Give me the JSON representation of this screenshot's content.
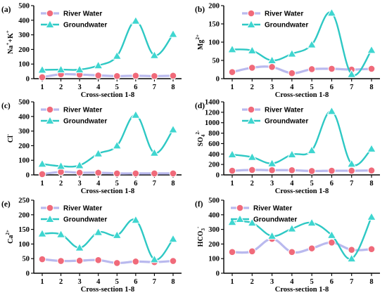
{
  "colors": {
    "river": "#f06a7a",
    "river_line": "#b9b9ee",
    "ground": "#2ec8c4",
    "ground_marker": "#3fd6d0"
  },
  "chart_data": [
    {
      "type": "line",
      "panel_label": "(a)",
      "ylabel_base": "Na",
      "ylabel_sup": "+",
      "ylabel_mid": "+K",
      "ylabel_sup2": "+",
      "xlabel": "Cross-section 1-8",
      "categories": [
        "1",
        "2",
        "3",
        "4",
        "5",
        "6",
        "7",
        "8"
      ],
      "ylim": [
        0,
        500
      ],
      "yticks": [
        "0",
        "100",
        "200",
        "300",
        "400",
        "500"
      ],
      "legend_position": "top-left",
      "series": [
        {
          "name": "River Water",
          "values": [
            10,
            30,
            28,
            22,
            18,
            20,
            18,
            20
          ]
        },
        {
          "name": "Groundwater",
          "values": [
            60,
            62,
            62,
            90,
            155,
            395,
            160,
            305
          ]
        }
      ]
    },
    {
      "type": "line",
      "panel_label": "(b)",
      "ylabel_base": "Mg",
      "ylabel_sup": "2+",
      "ylabel_mid": "",
      "ylabel_sup2": "",
      "xlabel": "Cross-section 1-8",
      "categories": [
        "1",
        "2",
        "3",
        "4",
        "5",
        "6",
        "7",
        "8"
      ],
      "ylim": [
        0,
        200
      ],
      "yticks": [
        "0",
        "50",
        "100",
        "150",
        "200"
      ],
      "legend_position": "top-center",
      "series": [
        {
          "name": "River Water",
          "values": [
            18,
            30,
            32,
            15,
            26,
            27,
            25,
            27
          ]
        },
        {
          "name": "Groundwater",
          "values": [
            80,
            77,
            50,
            68,
            93,
            180,
            12,
            78
          ]
        }
      ]
    },
    {
      "type": "line",
      "panel_label": "(c)",
      "ylabel_base": "Cl",
      "ylabel_sup": "-",
      "ylabel_mid": "",
      "ylabel_sup2": "",
      "xlabel": "Cross-section 1-8",
      "categories": [
        "1",
        "2",
        "3",
        "4",
        "5",
        "6",
        "7",
        "8"
      ],
      "ylim": [
        0,
        500
      ],
      "yticks": [
        "0",
        "100",
        "200",
        "300",
        "400",
        "500"
      ],
      "legend_position": "top-left",
      "series": [
        {
          "name": "River Water",
          "values": [
            5,
            20,
            15,
            15,
            10,
            10,
            10,
            10
          ]
        },
        {
          "name": "Groundwater",
          "values": [
            75,
            60,
            65,
            145,
            200,
            410,
            150,
            310
          ]
        }
      ]
    },
    {
      "type": "line",
      "panel_label": "(d)",
      "ylabel_base": "SO",
      "ylabel_sub": "4",
      "ylabel_sup": "2-",
      "ylabel_mid": "",
      "ylabel_sup2": "",
      "xlabel": "Cross-section 1-8",
      "categories": [
        "1",
        "2",
        "3",
        "4",
        "5",
        "6",
        "7",
        "8"
      ],
      "ylim": [
        0,
        1400
      ],
      "yticks": [
        "0",
        "200",
        "400",
        "600",
        "800",
        "1000",
        "1200",
        "1400"
      ],
      "legend_position": "top-center",
      "series": [
        {
          "name": "River Water",
          "values": [
            80,
            95,
            90,
            90,
            75,
            80,
            80,
            85
          ]
        },
        {
          "name": "Groundwater",
          "values": [
            390,
            340,
            220,
            390,
            470,
            1220,
            210,
            500
          ]
        }
      ]
    },
    {
      "type": "line",
      "panel_label": "(e)",
      "ylabel_base": "Ca",
      "ylabel_sup": "2+",
      "ylabel_mid": "",
      "ylabel_sup2": "",
      "xlabel": "Cross-section 1-8",
      "categories": [
        "1",
        "2",
        "3",
        "4",
        "5",
        "6",
        "7",
        "8"
      ],
      "ylim": [
        0,
        250
      ],
      "yticks": [
        "0",
        "50",
        "100",
        "150",
        "200",
        "250"
      ],
      "legend_position": "top-left",
      "series": [
        {
          "name": "River Water",
          "values": [
            48,
            42,
            43,
            45,
            35,
            40,
            38,
            42
          ]
        },
        {
          "name": "Groundwater",
          "values": [
            135,
            133,
            87,
            140,
            130,
            182,
            47,
            117
          ]
        }
      ]
    },
    {
      "type": "line",
      "panel_label": "(f)",
      "ylabel_base": "HCO",
      "ylabel_sub": "3",
      "ylabel_sup": "-",
      "ylabel_mid": "",
      "ylabel_sup2": "",
      "xlabel": "Cross-section 1-8",
      "categories": [
        "1",
        "2",
        "3",
        "4",
        "5",
        "6",
        "7",
        "8"
      ],
      "ylim": [
        0,
        500
      ],
      "yticks": [
        "0",
        "100",
        "200",
        "300",
        "400",
        "500"
      ],
      "legend_position": "top-left",
      "series": [
        {
          "name": "River Water",
          "values": [
            145,
            150,
            235,
            145,
            170,
            210,
            160,
            165
          ]
        },
        {
          "name": "Groundwater",
          "values": [
            350,
            345,
            255,
            305,
            345,
            260,
            100,
            385
          ]
        }
      ]
    }
  ]
}
